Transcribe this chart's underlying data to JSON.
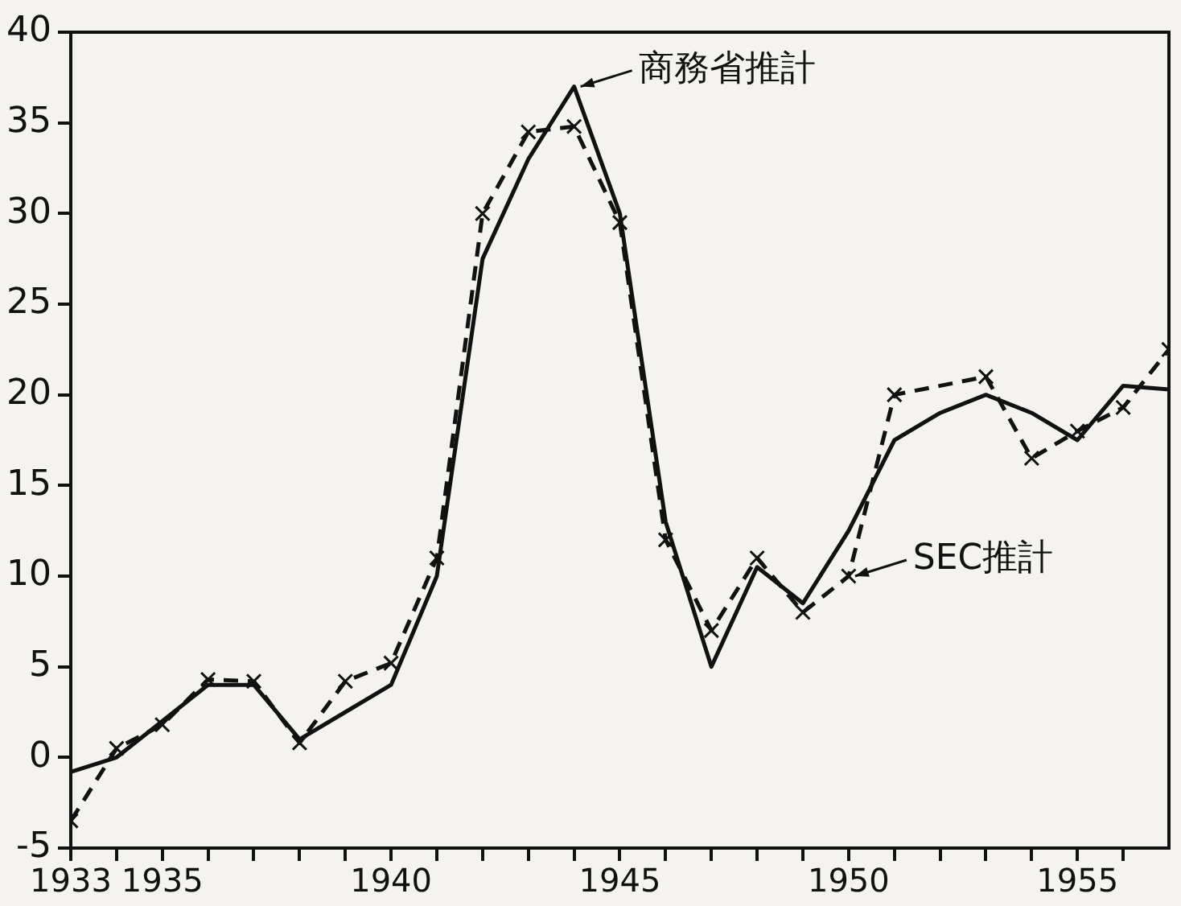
{
  "chart_data": {
    "type": "line",
    "xlim": [
      1933,
      1957
    ],
    "xticks": [
      1933,
      {
        "value": 1934,
        "label": null
      },
      1935,
      {
        "value": 1936,
        "label": null
      },
      {
        "value": 1937,
        "label": null
      },
      {
        "value": 1938,
        "label": null
      },
      {
        "value": 1939,
        "label": null
      },
      1940,
      {
        "value": 1941,
        "label": null
      },
      {
        "value": 1942,
        "label": null
      },
      {
        "value": 1943,
        "label": null
      },
      {
        "value": 1944,
        "label": null
      },
      1945,
      {
        "value": 1946,
        "label": null
      },
      {
        "value": 1947,
        "label": null
      },
      {
        "value": 1948,
        "label": null
      },
      {
        "value": 1949,
        "label": null
      },
      1950,
      {
        "value": 1951,
        "label": null
      },
      {
        "value": 1952,
        "label": null
      },
      {
        "value": 1953,
        "label": null
      },
      {
        "value": 1954,
        "label": null
      },
      1955,
      {
        "value": 1956,
        "label": null
      }
    ],
    "ylim": [
      -5,
      40
    ],
    "yticks": [
      -5,
      0,
      5,
      10,
      15,
      20,
      25,
      30,
      35,
      40
    ],
    "grid": false,
    "legend": false,
    "series": [
      {
        "color": "#111111",
        "marker": "none",
        "line_style": "solid",
        "x": [
          1933,
          1934,
          1935,
          1936,
          1937,
          1938,
          1939,
          1940,
          1941,
          1942,
          1943,
          1944,
          1945,
          1946,
          1947,
          1948,
          1949,
          1950,
          1951,
          1952,
          1953,
          1954,
          1955,
          1956,
          1957
        ],
        "values": [
          -0.8,
          0,
          2,
          4,
          4,
          1,
          2.5,
          4,
          10,
          27.5,
          33,
          37,
          30,
          13,
          5,
          10.5,
          8.5,
          12.5,
          17.5,
          19,
          20,
          19,
          17.5,
          20.5,
          20.3
        ]
      },
      {
        "color": "#111111",
        "marker": "cross",
        "line_style": "dashed",
        "x": [
          1933,
          1934,
          1935,
          1936,
          1937,
          1938,
          1939,
          1940,
          1941,
          1942,
          1943,
          1944,
          1945,
          1946,
          1947,
          1948,
          1949,
          1950,
          1951,
          1953,
          1954,
          1955,
          1956,
          1957
        ],
        "values": [
          -3.5,
          0.5,
          1.8,
          4.3,
          4.2,
          0.8,
          4.2,
          5.2,
          11,
          30,
          34.5,
          34.8,
          29.5,
          12,
          7,
          11,
          8,
          10,
          20,
          21,
          16.5,
          18,
          19.3,
          22.5
        ]
      }
    ],
    "annotations": [
      {
        "text": "商務省推計",
        "x": 1944,
        "y": 37
      },
      {
        "text": "SEC推計",
        "x": 1950,
        "y": 10
      }
    ]
  }
}
